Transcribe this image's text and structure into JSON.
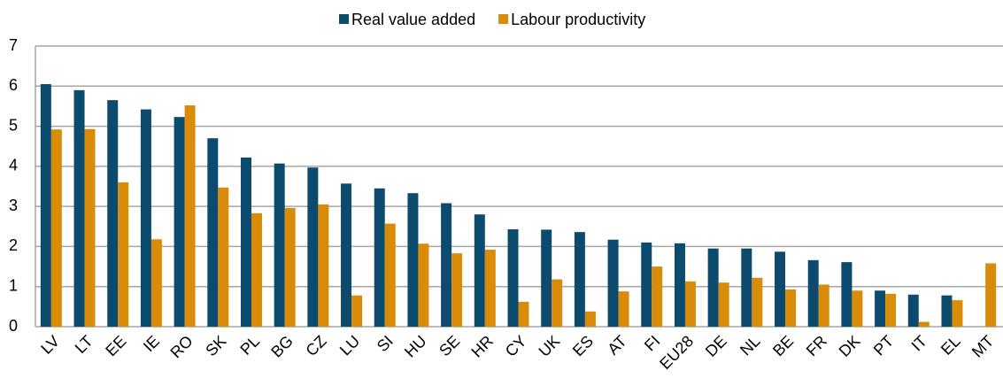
{
  "chart_data": {
    "type": "bar",
    "categories": [
      "LV",
      "LT",
      "EE",
      "IE",
      "RO",
      "SK",
      "PL",
      "BG",
      "CZ",
      "LU",
      "SI",
      "HU",
      "SE",
      "HR",
      "CY",
      "UK",
      "ES",
      "AT",
      "FI",
      "EU28",
      "DE",
      "NL",
      "BE",
      "FR",
      "DK",
      "PT",
      "IT",
      "EL",
      "MT"
    ],
    "series": [
      {
        "name": "Real value added",
        "color": "#0c4a6e",
        "values": [
          6.05,
          5.9,
          5.65,
          5.42,
          5.23,
          4.7,
          4.22,
          4.07,
          3.97,
          3.57,
          3.45,
          3.33,
          3.08,
          2.8,
          2.43,
          2.42,
          2.36,
          2.17,
          2.1,
          2.08,
          1.95,
          1.95,
          1.87,
          1.66,
          1.61,
          0.9,
          0.8,
          0.78,
          null
        ]
      },
      {
        "name": "Labour productivity",
        "color": "#d98c0a",
        "values": [
          4.92,
          4.93,
          3.6,
          2.18,
          5.52,
          3.47,
          2.83,
          2.96,
          3.05,
          0.78,
          2.57,
          2.07,
          1.83,
          1.92,
          0.62,
          1.18,
          0.38,
          0.88,
          1.5,
          1.13,
          1.1,
          1.22,
          0.93,
          1.05,
          0.9,
          0.82,
          0.12,
          0.66,
          1.58
        ]
      }
    ],
    "ylim": [
      0,
      7
    ],
    "yticks": [
      0,
      1,
      2,
      3,
      4,
      5,
      6,
      7
    ],
    "grid": true
  }
}
